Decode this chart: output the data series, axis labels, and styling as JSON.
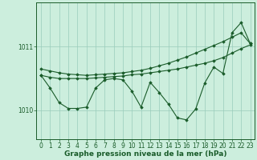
{
  "background_color": "#cceedd",
  "grid_color": "#99ccbb",
  "line_color": "#1a5c2a",
  "xlabel": "Graphe pression niveau de la mer (hPa)",
  "xlabel_fontsize": 6.5,
  "tick_fontsize": 5.5,
  "yticks": [
    1010,
    1011
  ],
  "ylim": [
    1009.55,
    1011.7
  ],
  "xlim": [
    -0.5,
    23.5
  ],
  "xticks": [
    0,
    1,
    2,
    3,
    4,
    5,
    6,
    7,
    8,
    9,
    10,
    11,
    12,
    13,
    14,
    15,
    16,
    17,
    18,
    19,
    20,
    21,
    22,
    23
  ],
  "line1": [
    1010.55,
    1010.52,
    1010.5,
    1010.5,
    1010.5,
    1010.5,
    1010.51,
    1010.52,
    1010.53,
    1010.54,
    1010.56,
    1010.57,
    1010.59,
    1010.61,
    1010.63,
    1010.65,
    1010.68,
    1010.71,
    1010.74,
    1010.78,
    1010.83,
    1010.9,
    1010.97,
    1011.03
  ],
  "line2": [
    1010.65,
    1010.62,
    1010.59,
    1010.57,
    1010.56,
    1010.55,
    1010.56,
    1010.57,
    1010.58,
    1010.59,
    1010.61,
    1010.63,
    1010.66,
    1010.7,
    1010.74,
    1010.79,
    1010.84,
    1010.9,
    1010.96,
    1011.02,
    1011.08,
    1011.15,
    1011.22,
    1011.05
  ],
  "line3": [
    1010.55,
    1010.35,
    1010.12,
    1010.03,
    1010.03,
    1010.05,
    1010.35,
    1010.48,
    1010.5,
    1010.48,
    1010.3,
    1010.05,
    1010.44,
    1010.28,
    1010.1,
    1009.88,
    1009.85,
    1010.02,
    1010.43,
    1010.68,
    1010.58,
    1011.22,
    1011.38,
    1011.05
  ]
}
